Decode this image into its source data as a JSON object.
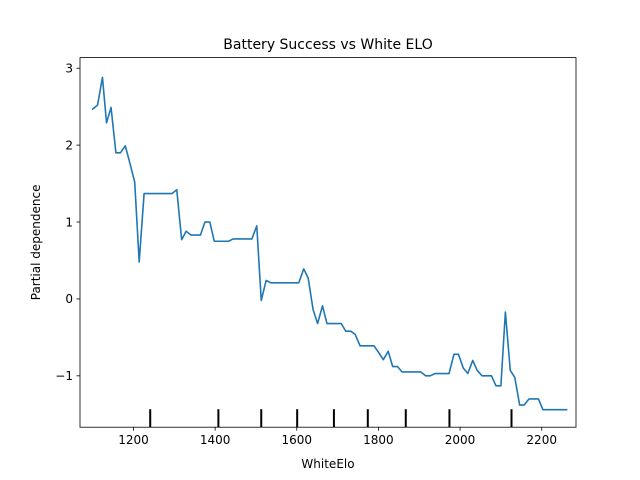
{
  "chart_data": {
    "type": "line",
    "title": "Battery Success vs White ELO",
    "xlabel": "WhiteElo",
    "ylabel": "Partial dependence",
    "xlim": [
      1069,
      2284
    ],
    "ylim": [
      -1.668,
      3.138
    ],
    "xticks": [
      1200,
      1400,
      1600,
      1800,
      2000,
      2200
    ],
    "yticks": [
      -1,
      0,
      1,
      2,
      3
    ],
    "ytick_labels": [
      "−1",
      "0",
      "1",
      "2",
      "3"
    ],
    "grid": false,
    "line_color": "#1f77b4",
    "rug_color": "#000000",
    "rug_x": [
      1241,
      1408,
      1513,
      1601,
      1691,
      1774,
      1867,
      1974,
      2126
    ],
    "series": [
      {
        "x": [
          1100,
          1112,
          1124,
          1134,
          1145,
          1157,
          1168,
          1180,
          1191,
          1203,
          1214,
          1226,
          1237,
          1249,
          1260,
          1272,
          1283,
          1294,
          1306,
          1318,
          1329,
          1341,
          1352,
          1364,
          1375,
          1387,
          1398,
          1410,
          1421,
          1433,
          1444,
          1456,
          1467,
          1479,
          1490,
          1502,
          1513,
          1525,
          1536,
          1548,
          1559,
          1571,
          1582,
          1594,
          1605,
          1617,
          1628,
          1640,
          1651,
          1663,
          1674,
          1686,
          1697,
          1709,
          1720,
          1732,
          1743,
          1755,
          1766,
          1778,
          1789,
          1801,
          1812,
          1824,
          1835,
          1847,
          1858,
          1870,
          1881,
          1893,
          1904,
          1916,
          1927,
          1939,
          1950,
          1962,
          1973,
          1985,
          1996,
          2008,
          2019,
          2031,
          2042,
          2054,
          2065,
          2077,
          2088,
          2100,
          2111,
          2123,
          2134,
          2146,
          2157,
          2169,
          2180,
          2192,
          2203,
          2215,
          2226,
          2238,
          2249,
          2261
        ],
        "y": [
          2.47,
          2.52,
          2.88,
          2.29,
          2.49,
          1.9,
          1.9,
          1.99,
          1.77,
          1.52,
          0.48,
          1.37,
          1.37,
          1.37,
          1.37,
          1.37,
          1.37,
          1.37,
          1.42,
          0.77,
          0.88,
          0.83,
          0.83,
          0.83,
          1.0,
          1.0,
          0.75,
          0.75,
          0.75,
          0.75,
          0.78,
          0.78,
          0.78,
          0.78,
          0.78,
          0.95,
          -0.02,
          0.24,
          0.21,
          0.21,
          0.21,
          0.21,
          0.21,
          0.21,
          0.21,
          0.39,
          0.27,
          -0.14,
          -0.32,
          -0.09,
          -0.32,
          -0.32,
          -0.32,
          -0.32,
          -0.42,
          -0.42,
          -0.46,
          -0.61,
          -0.61,
          -0.61,
          -0.61,
          -0.7,
          -0.79,
          -0.68,
          -0.88,
          -0.88,
          -0.95,
          -0.95,
          -0.95,
          -0.95,
          -0.95,
          -1.0,
          -1.0,
          -0.97,
          -0.97,
          -0.97,
          -0.97,
          -0.72,
          -0.72,
          -0.9,
          -0.97,
          -0.8,
          -0.93,
          -1.0,
          -1.0,
          -1.0,
          -1.13,
          -1.13,
          -0.17,
          -0.93,
          -1.02,
          -1.38,
          -1.38,
          -1.3,
          -1.3,
          -1.3,
          -1.44,
          -1.44,
          -1.44,
          -1.44,
          -1.44,
          -1.44
        ]
      }
    ]
  }
}
